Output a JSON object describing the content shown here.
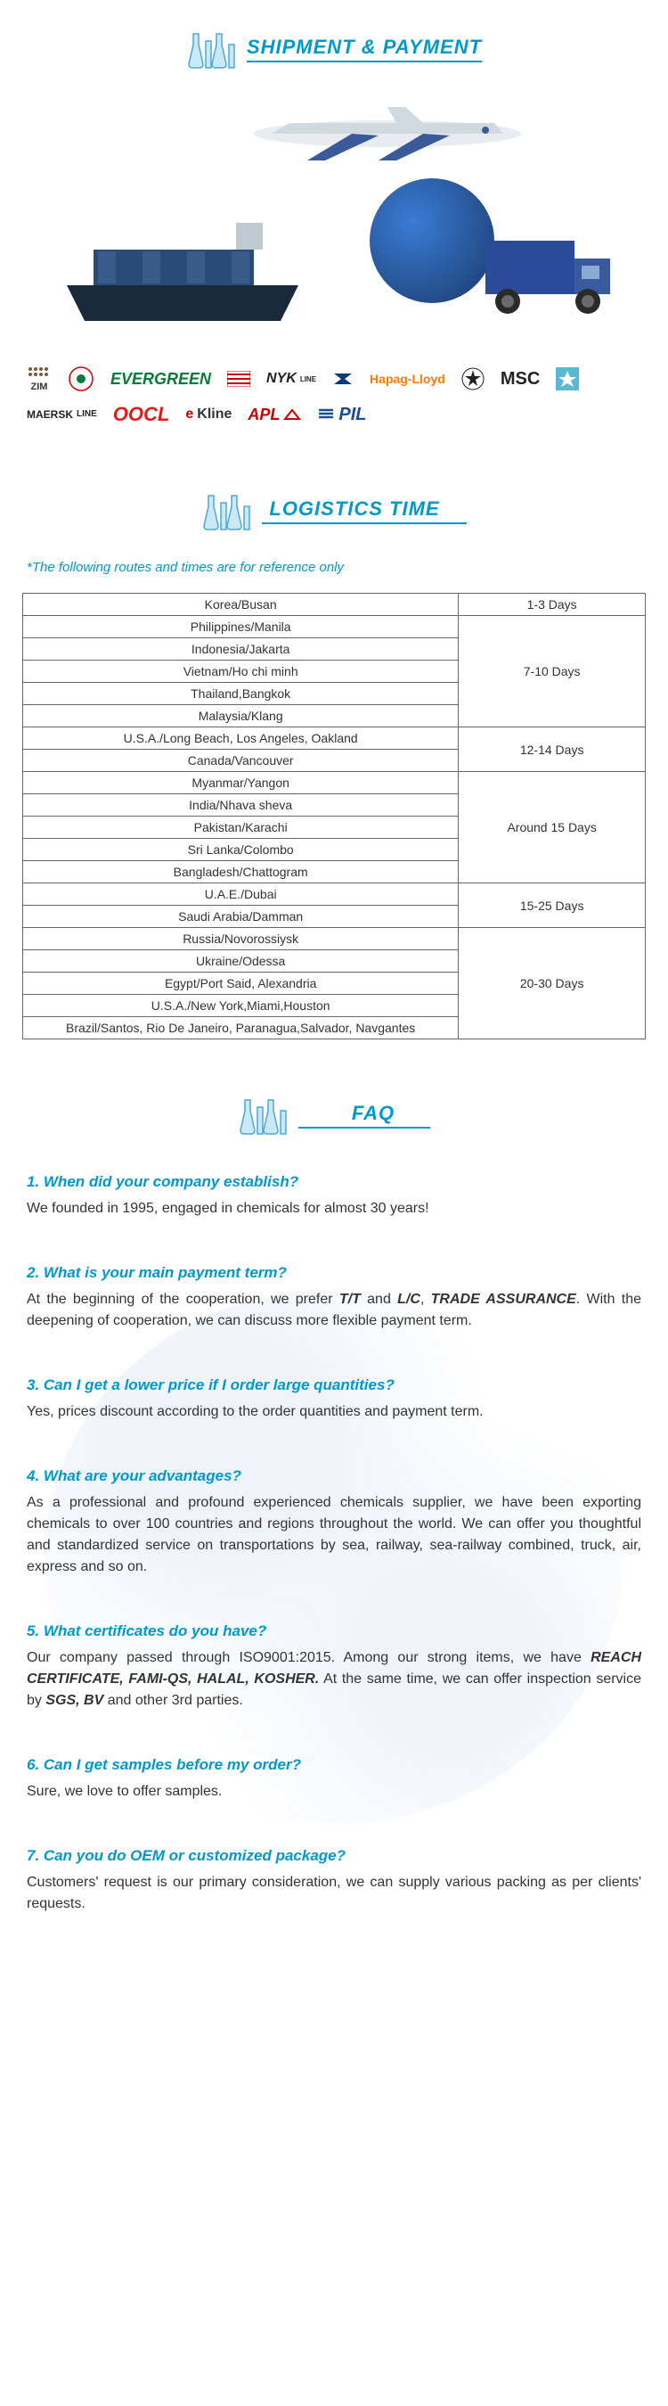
{
  "sections": {
    "shipment_title": "SHIPMENT & PAYMENT",
    "logistics_title": "LOGISTICS TIME",
    "faq_title": "FAQ"
  },
  "colors": {
    "accent": "#0099cc",
    "flask_blue": "#4aa9d8",
    "text": "#333333",
    "border": "#666666"
  },
  "logos": [
    {
      "name": "ZIM",
      "style": "zim"
    },
    {
      "name": "EVERGREEN",
      "style": "evergreen"
    },
    {
      "name": "NYK",
      "style": "nyk",
      "suffix": "LINE"
    },
    {
      "name": "Hapag-Lloyd",
      "style": "hapag"
    },
    {
      "name": "MSC",
      "style": "msc"
    },
    {
      "name": "MAERSK LINE",
      "style": "maersk"
    },
    {
      "name": "OOCL",
      "style": "oocl"
    },
    {
      "name": "Kline",
      "style": "kline",
      "prefix": "e"
    },
    {
      "name": "APL",
      "style": "apl"
    },
    {
      "name": "PIL",
      "style": "pil"
    }
  ],
  "logistics_note": "*The following routes and times are for reference only",
  "logistics": {
    "rows": [
      {
        "destination": "Korea/Busan",
        "time": "1-3 Days",
        "timespan": 1
      },
      {
        "destination": "Philippines/Manila",
        "time": "7-10 Days",
        "timespan": 5
      },
      {
        "destination": "Indonesia/Jakarta"
      },
      {
        "destination": "Vietnam/Ho chi minh"
      },
      {
        "destination": "Thailand,Bangkok"
      },
      {
        "destination": "Malaysia/Klang"
      },
      {
        "destination": "U.S.A./Long Beach, Los Angeles, Oakland",
        "time": "12-14 Days",
        "timespan": 2
      },
      {
        "destination": "Canada/Vancouver"
      },
      {
        "destination": "Myanmar/Yangon",
        "time": "Around 15 Days",
        "timespan": 5
      },
      {
        "destination": "India/Nhava sheva"
      },
      {
        "destination": "Pakistan/Karachi"
      },
      {
        "destination": "Sri Lanka/Colombo"
      },
      {
        "destination": "Bangladesh/Chattogram"
      },
      {
        "destination": "U.A.E./Dubai",
        "time": "15-25 Days",
        "timespan": 2
      },
      {
        "destination": "Saudi Arabia/Damman"
      },
      {
        "destination": "Russia/Novorossiysk",
        "time": "20-30 Days",
        "timespan": 5
      },
      {
        "destination": "Ukraine/Odessa"
      },
      {
        "destination": "Egypt/Port Said, Alexandria"
      },
      {
        "destination": "U.S.A./New York,Miami,Houston"
      },
      {
        "destination": "Brazil/Santos, Rio De Janeiro, Paranagua,Salvador, Navgantes"
      }
    ]
  },
  "faq": [
    {
      "q": "1. When did your company establish?",
      "a": "We founded in 1995, engaged in chemicals for almost 30 years!"
    },
    {
      "q": "2. What is your main payment term?",
      "a": "At the beginning of the cooperation,  we prefer <b>T/T</b> and <b>L/C</b>, <b>TRADE ASSURANCE</b>. With the deepening of cooperation, we can discuss more flexible payment term."
    },
    {
      "q": "3. Can I get a lower price if I order large quantities?",
      "a": "Yes, prices discount according to the order quantities and payment term."
    },
    {
      "q": "4. What are your advantages?",
      "a": "As a professional and profound experienced chemicals supplier, we have been exporting chemicals to over 100 countries and regions throughout the world. We can offer you thoughtful and standardized service on transportations by sea, railway, sea-railway combined, truck, air, express and so on."
    },
    {
      "q": "5. What certificates do you have?",
      "a": "Our company passed through ISO9001:2015. Among our strong items,  we have <b>REACH CERTIFICATE, FAMI-QS, HALAL, KOSHER.</b> At the same time, we can offer inspection service by <b>SGS, BV</b> and other 3rd parties."
    },
    {
      "q": "6. Can I get samples before my order?",
      "a": "Sure, we love to offer samples."
    },
    {
      "q": "7. Can you do OEM or customized package?",
      "a": "Customers' request is our primary consideration, we can supply various packing as per clients' requests."
    }
  ]
}
